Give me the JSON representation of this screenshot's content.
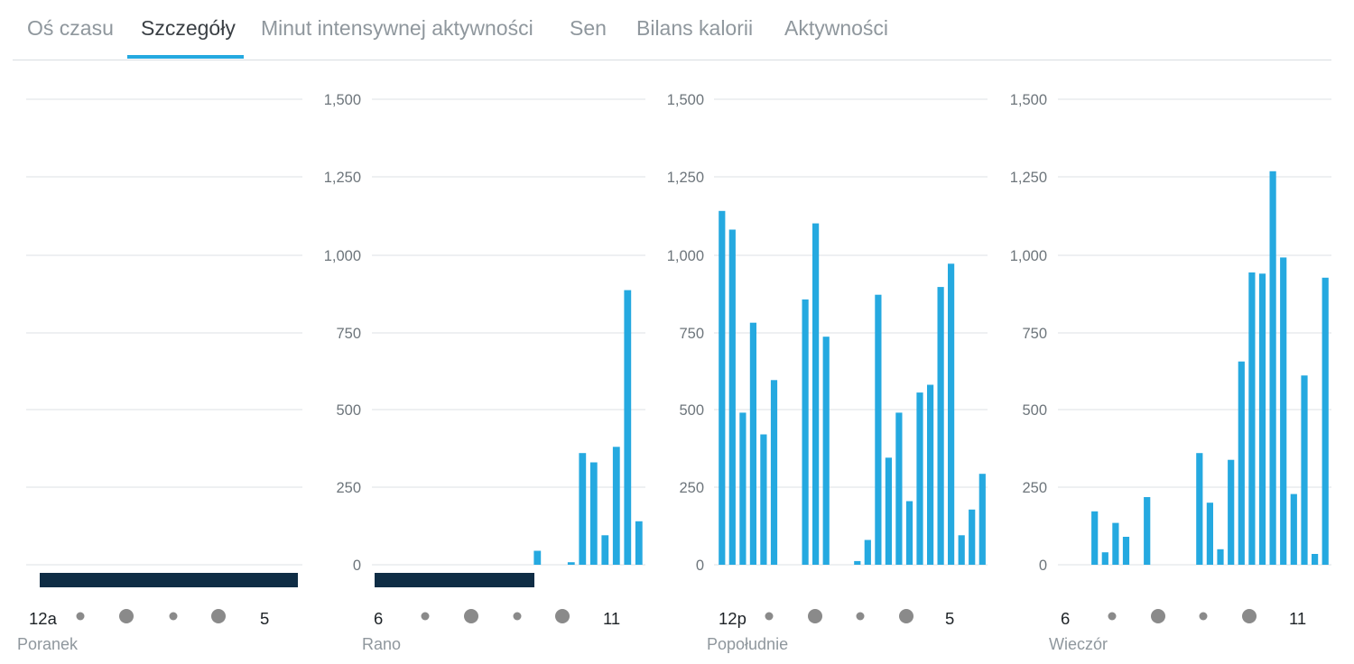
{
  "tabs": [
    {
      "label": "Oś czasu",
      "active": false
    },
    {
      "label": "Szczegóły",
      "active": true
    },
    {
      "label": "Minut intensywnej aktywności",
      "active": false
    },
    {
      "label": "Sen",
      "active": false
    },
    {
      "label": "Bilans kalorii",
      "active": false
    },
    {
      "label": "Aktywności",
      "active": false
    }
  ],
  "colors": {
    "bar": "#25a9e0",
    "sleep": "#0f2d45",
    "grid": "#dde2e6",
    "dot": "#8a8a8a"
  },
  "chart_data": [
    {
      "type": "bar",
      "panel_label": "Poranek",
      "x_start_label": "12a",
      "x_end_label": "5",
      "y_ticks": [
        "1,500",
        "1,250",
        "1,000",
        "750",
        "500",
        "250",
        "0"
      ],
      "show_y_ticks": false,
      "ylim": [
        0,
        1500
      ],
      "sleep_fraction": 1.0,
      "values": [
        0,
        0,
        0,
        0,
        0,
        0,
        0,
        0,
        0,
        0,
        0,
        0,
        0,
        0,
        0,
        0,
        0,
        0,
        0,
        0,
        0,
        0,
        0,
        0
      ]
    },
    {
      "type": "bar",
      "panel_label": "Rano",
      "x_start_label": "6",
      "x_end_label": "11",
      "y_ticks": [
        "1,500",
        "1,250",
        "1,000",
        "750",
        "500",
        "250",
        "0"
      ],
      "show_y_ticks": true,
      "ylim": [
        0,
        1500
      ],
      "sleep_fraction": 0.59,
      "values": [
        0,
        0,
        0,
        0,
        0,
        0,
        0,
        0,
        0,
        0,
        0,
        0,
        0,
        0,
        45,
        0,
        0,
        8,
        360,
        330,
        95,
        380,
        885,
        140
      ]
    },
    {
      "type": "bar",
      "panel_label": "Popołudnie",
      "x_start_label": "12p",
      "x_end_label": "5",
      "y_ticks": [
        "1,500",
        "1,250",
        "1,000",
        "750",
        "500",
        "250",
        "0"
      ],
      "show_y_ticks": true,
      "ylim": [
        0,
        1500
      ],
      "sleep_fraction": 0,
      "values": [
        1140,
        1080,
        490,
        780,
        420,
        595,
        0,
        0,
        855,
        1100,
        735,
        0,
        0,
        12,
        80,
        870,
        345,
        490,
        205,
        555,
        580,
        895,
        970,
        95,
        178,
        293
      ]
    },
    {
      "type": "bar",
      "panel_label": "Wieczór",
      "x_start_label": "6",
      "x_end_label": "11",
      "y_ticks": [
        "1,500",
        "1,250",
        "1,000",
        "750",
        "500",
        "250",
        "0"
      ],
      "show_y_ticks": true,
      "ylim": [
        0,
        1500
      ],
      "sleep_fraction": 0,
      "values": [
        0,
        0,
        0,
        172,
        40,
        135,
        90,
        0,
        218,
        0,
        0,
        0,
        0,
        360,
        200,
        50,
        338,
        655,
        942,
        938,
        1268,
        990,
        228,
        610,
        35,
        925
      ]
    }
  ]
}
